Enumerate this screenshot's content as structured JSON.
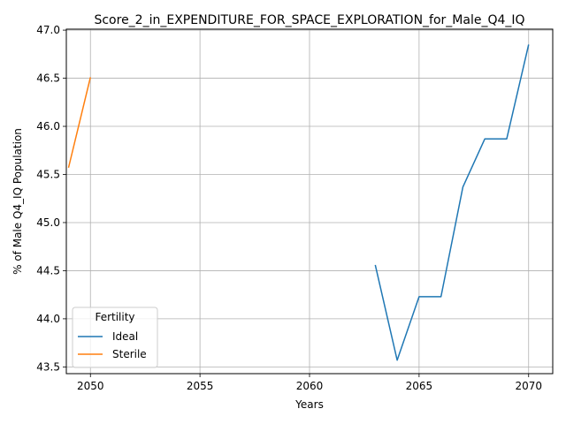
{
  "chart_data": {
    "type": "line",
    "title": "Score_2_in_EXPENDITURE_FOR_SPACE_EXPLORATION_for_Male_Q4_IQ",
    "xlabel": "Years",
    "ylabel": "% of Male Q4_IQ Population",
    "xlim": [
      2048.9,
      2071.1
    ],
    "ylim": [
      43.43,
      47.01
    ],
    "xticks": [
      2050,
      2055,
      2060,
      2065,
      2070
    ],
    "yticks": [
      43.5,
      44.0,
      44.5,
      45.0,
      45.5,
      46.0,
      46.5,
      47.0
    ],
    "grid": true,
    "legend": {
      "title": "Fertility",
      "placement": "lower-left"
    },
    "series": [
      {
        "name": "Ideal",
        "color": "#1f77b4",
        "x": [
          2063,
          2064,
          2065,
          2066,
          2067,
          2068,
          2069,
          2070
        ],
        "y": [
          44.56,
          43.57,
          44.23,
          44.23,
          45.37,
          45.87,
          45.87,
          46.85
        ]
      },
      {
        "name": "Sterile",
        "color": "#ff7f0e",
        "x": [
          2049,
          2050
        ],
        "y": [
          45.57,
          46.51
        ]
      }
    ]
  }
}
